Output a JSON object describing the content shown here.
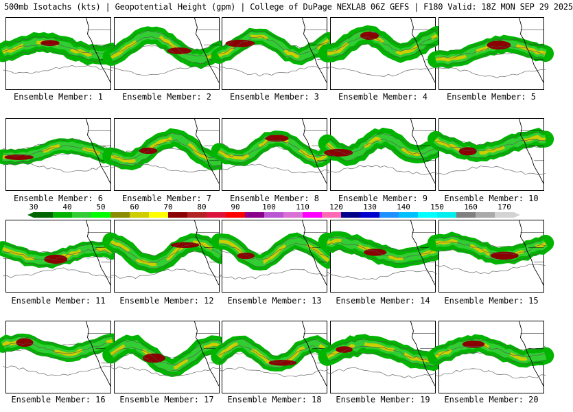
{
  "header": {
    "title": "500mb Isotachs (kts) | Geopotential Height (gpm) | College of DuPage NEXLAB   06Z GEFS | F180 Valid: 18Z MON SEP 29 2025"
  },
  "colorbar": {
    "ticks": [
      "30",
      "40",
      "50",
      "60",
      "70",
      "80",
      "90",
      "100",
      "110",
      "120",
      "130",
      "140",
      "150",
      "160",
      "170"
    ],
    "colors": [
      "#006400",
      "#00b400",
      "#32cd32",
      "#00ff00",
      "#8b8b00",
      "#cdcd00",
      "#ffff00",
      "#8b0000",
      "#b22222",
      "#dc143c",
      "#ff0000",
      "#8b008b",
      "#ba55d3",
      "#da70d6",
      "#ff00ff",
      "#ff69b4",
      "#00008b",
      "#0000cd",
      "#1e90ff",
      "#00bfff",
      "#00ffff",
      "#00eeee",
      "#808080",
      "#a9a9a9",
      "#d3d3d3"
    ]
  },
  "panels": [
    {
      "label": "Ensemble Member: 1"
    },
    {
      "label": "Ensemble Member: 2"
    },
    {
      "label": "Ensemble Member: 3"
    },
    {
      "label": "Ensemble Member: 4"
    },
    {
      "label": "Ensemble Member: 5"
    },
    {
      "label": "Ensemble Member: 6"
    },
    {
      "label": "Ensemble Member: 7"
    },
    {
      "label": "Ensemble Member: 8"
    },
    {
      "label": "Ensemble Member: 9"
    },
    {
      "label": "Ensemble Member: 10"
    },
    {
      "label": "Ensemble Member: 11"
    },
    {
      "label": "Ensemble Member: 12"
    },
    {
      "label": "Ensemble Member: 13"
    },
    {
      "label": "Ensemble Member: 14"
    },
    {
      "label": "Ensemble Member: 15"
    },
    {
      "label": "Ensemble Member: 16"
    },
    {
      "label": "Ensemble Member: 17"
    },
    {
      "label": "Ensemble Member: 18"
    },
    {
      "label": "Ensemble Member: 19"
    },
    {
      "label": "Ensemble Member: 20"
    }
  ]
}
